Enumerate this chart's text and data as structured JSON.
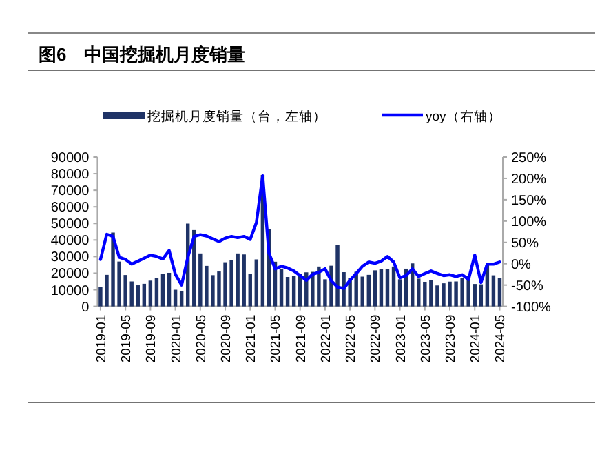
{
  "chart_data": {
    "type": "bar",
    "title": "图6　中国挖掘机月度销量",
    "legend": "top",
    "grid": false,
    "categories": [
      "2019-01",
      null,
      null,
      null,
      "2019-05",
      null,
      null,
      null,
      "2019-09",
      null,
      null,
      null,
      "2020-01",
      null,
      null,
      null,
      "2020-05",
      null,
      null,
      null,
      "2020-09",
      null,
      null,
      null,
      "2021-01",
      null,
      null,
      null,
      "2021-05",
      null,
      null,
      null,
      "2021-09",
      null,
      null,
      null,
      "2022-01",
      null,
      null,
      null,
      "2022-05",
      null,
      null,
      null,
      "2022-09",
      null,
      null,
      null,
      "2023-01",
      null,
      null,
      null,
      "2023-05",
      null,
      null,
      null,
      "2023-09",
      null,
      null,
      null,
      "2024-01",
      null,
      null,
      null,
      "2024-05"
    ],
    "series": [
      {
        "name": "挖掘机月度销量（台，左轴）",
        "color": "#1f3366",
        "values": [
          11600,
          19000,
          44500,
          27000,
          18900,
          15000,
          12700,
          13600,
          15500,
          16900,
          19400,
          20200,
          10000,
          9400,
          49900,
          46000,
          31900,
          24400,
          18800,
          21000,
          26600,
          27700,
          31900,
          31300,
          19400,
          28300,
          79200,
          46500,
          26900,
          22700,
          17700,
          18300,
          19700,
          20500,
          20800,
          24000,
          16300,
          24500,
          37100,
          20600,
          17000,
          20800,
          17900,
          19000,
          21700,
          22600,
          22500,
          24000,
          16300,
          22700,
          25900,
          16700,
          14800,
          15900,
          12600,
          13900,
          14900,
          15000,
          16900,
          18200,
          13500,
          13300,
          25200,
          18700,
          17000
        ]
      },
      {
        "name": "yoy（右轴）",
        "type": "line",
        "axis": "y2",
        "color": "#0000ff",
        "values": [
          10,
          69,
          64,
          15,
          10,
          -1,
          6,
          13,
          20,
          17,
          11,
          31,
          -25,
          -50,
          15,
          64,
          68,
          65,
          58,
          52,
          60,
          64,
          61,
          64,
          57,
          97,
          206,
          25,
          -12,
          -6,
          -10,
          -17,
          -28,
          -39,
          -25,
          -20,
          -12,
          -40,
          -55,
          -58,
          -39,
          -23,
          -6,
          4,
          1,
          6,
          17,
          4,
          -33,
          -28,
          -12,
          -30,
          -23,
          -17,
          -23,
          -28,
          -26,
          -30,
          -26,
          -37,
          20,
          -44,
          -1,
          -1,
          4
        ]
      }
    ],
    "ylim": [
      0,
      90000
    ],
    "yticks": [
      0,
      10000,
      20000,
      30000,
      40000,
      50000,
      60000,
      70000,
      80000,
      90000
    ],
    "y2lim": [
      -100,
      250
    ],
    "y2ticks": [
      {
        "value": -100,
        "label": "-100%"
      },
      {
        "value": -50,
        "label": "-50%"
      },
      {
        "value": 0,
        "label": "0%"
      },
      {
        "value": 50,
        "label": "50%"
      },
      {
        "value": 100,
        "label": "100%"
      },
      {
        "value": 150,
        "label": "150%"
      },
      {
        "value": 200,
        "label": "200%"
      },
      {
        "value": 250,
        "label": "250%"
      }
    ]
  }
}
